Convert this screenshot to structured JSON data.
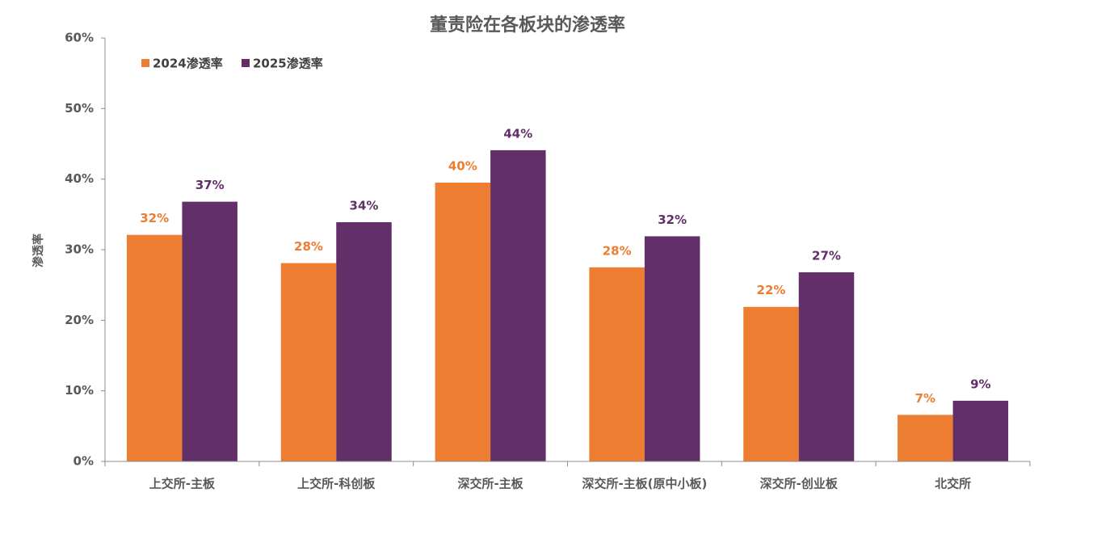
{
  "chart_data": {
    "type": "bar",
    "title": "董责险在各板块的渗透率",
    "y_label": "渗透率",
    "categories": [
      "上交所-主板",
      "上交所-科创板",
      "深交所-主板",
      "深交所-主板(原中小板)",
      "深交所-创业板",
      "北交所"
    ],
    "series": [
      {
        "name": "2024渗透率",
        "color": "#ED7D31",
        "values": [
          32.1,
          28.1,
          39.5,
          27.5,
          21.9,
          6.6
        ],
        "value_labels": [
          "32%",
          "28%",
          "40%",
          "28%",
          "22%",
          "7%"
        ]
      },
      {
        "name": "2025渗透率",
        "color": "#622F69",
        "values": [
          36.8,
          33.9,
          44.1,
          31.9,
          26.8,
          8.6
        ],
        "value_labels": [
          "37%",
          "34%",
          "44%",
          "32%",
          "27%",
          "9%"
        ]
      }
    ],
    "ylim": [
      0,
      60
    ],
    "yticks": [
      {
        "value": 0,
        "label": "0%"
      },
      {
        "value": 10,
        "label": "10%"
      },
      {
        "value": 20,
        "label": "20%"
      },
      {
        "value": 30,
        "label": "30%"
      },
      {
        "value": 40,
        "label": "40%"
      },
      {
        "value": 50,
        "label": "50%"
      },
      {
        "value": 60,
        "label": "60%"
      }
    ],
    "grid": false,
    "legend": "upper left"
  }
}
